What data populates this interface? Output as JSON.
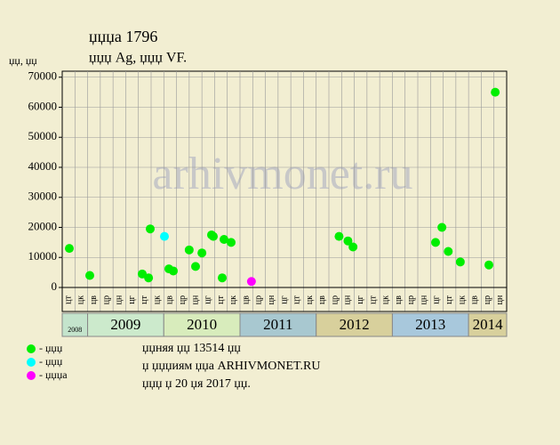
{
  "chart_data": {
    "type": "scatter",
    "title": "џџџа 1796",
    "subtitle": "џџџ Ag, џџџ VF.",
    "y_label": "џџ, џџ",
    "watermark": "arhivmonet.ru",
    "xlim": [
      0,
      35
    ],
    "ylim": [
      0,
      72000
    ],
    "yticks": [
      0,
      10000,
      20000,
      30000,
      40000,
      50000,
      60000,
      70000
    ],
    "grid": true,
    "months": [
      "цт",
      "цк",
      "цв",
      "цр",
      "цн",
      "цг",
      "цт",
      "цк",
      "цв",
      "цр",
      "цн",
      "цг",
      "цт",
      "цк",
      "цв",
      "цр",
      "цн",
      "цг",
      "цт",
      "цк",
      "цв",
      "цр",
      "цн",
      "цг",
      "цт",
      "цк",
      "цв",
      "цр",
      "цн",
      "цг",
      "цт",
      "цк",
      "цв",
      "цр",
      "цн"
    ],
    "years": [
      "2008",
      "2009",
      "2010",
      "2011",
      "2012",
      "2013",
      "2014"
    ],
    "series": [
      {
        "name": "- џџџ",
        "color": "#00ee00",
        "x": [
          0.56,
          2.17,
          6.3,
          6.8,
          6.93,
          8.4,
          8.75,
          10.0,
          10.5,
          11.0,
          11.76,
          11.9,
          12.6,
          12.74,
          13.3,
          21.8,
          22.5,
          22.9,
          29.4,
          29.9,
          30.4,
          31.35,
          33.6,
          34.1
        ],
        "values": [
          13000,
          4000,
          4500,
          3200,
          19500,
          6200,
          5500,
          12500,
          7000,
          11500,
          17500,
          17000,
          3200,
          16000,
          15000,
          17000,
          15500,
          13500,
          15000,
          20000,
          12000,
          8500,
          7500,
          65000
        ]
      },
      {
        "name": "- џџџ",
        "color": "#00ffff",
        "x": [
          8.05
        ],
        "values": [
          17000
        ]
      },
      {
        "name": "- џџџа",
        "color": "#ff00ff",
        "x": [
          14.9
        ],
        "values": [
          2000
        ]
      }
    ],
    "notes": [
      "џџняя џџ 13514 џџ",
      "џ џџџиям џџа ARHIVMONET.RU",
      "џџџ џ 20 џя 2017 џџ."
    ]
  }
}
